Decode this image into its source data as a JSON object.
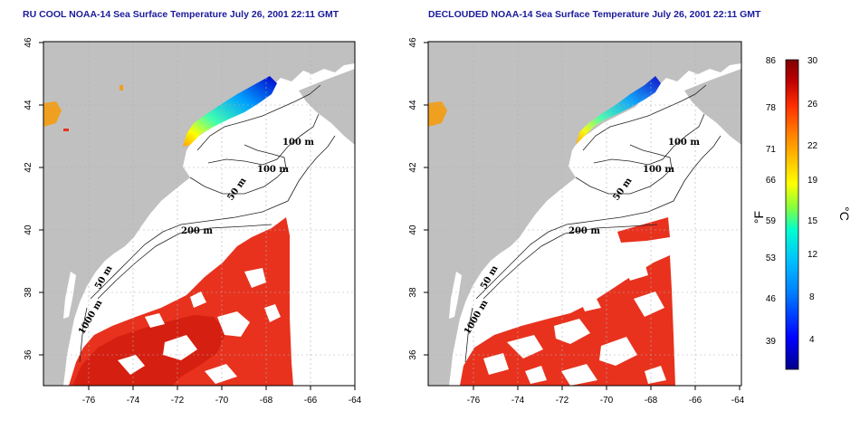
{
  "panels": [
    {
      "id": "left",
      "title": "RU COOL NOAA-14 Sea Surface Temperature July 26, 2001 22:11 GMT",
      "variant": "raw"
    },
    {
      "id": "right",
      "title": "DECLOUDED NOAA-14 Sea Surface Temperature July 26, 2001 22:11 GMT",
      "variant": "declouded"
    }
  ],
  "x_ticks": [
    "-76",
    "-74",
    "-72",
    "-70",
    "-68",
    "-66",
    "-64"
  ],
  "y_ticks": [
    "36",
    "38",
    "40",
    "42",
    "44",
    "46"
  ],
  "contour_labels": {
    "c100a": "100 m",
    "c100b": "100 m",
    "c50a": "50 m",
    "c200": "200 m",
    "c50b": "50 m",
    "c1000": "1000 m"
  },
  "colorbar": {
    "fahrenheit_label": "°F",
    "celsius_label": "°C",
    "fahrenheit_ticks": [
      "86",
      "78",
      "71",
      "66",
      "59",
      "53",
      "46",
      "39"
    ],
    "celsius_ticks": [
      "30",
      "26",
      "22",
      "19",
      "15",
      "12",
      "8",
      "4"
    ],
    "colors": [
      "#00008b",
      "#0000ff",
      "#0080ff",
      "#00c0ff",
      "#00ffd0",
      "#80ff40",
      "#ffff00",
      "#ffc000",
      "#ff8000",
      "#ff3000",
      "#c00000",
      "#800000"
    ]
  },
  "colors": {
    "land": "#c0c0c0",
    "water": "#ffffff",
    "sst_warm": "#e8321e",
    "sst_hot": "#d42010",
    "grid": "#b0b0b0"
  }
}
